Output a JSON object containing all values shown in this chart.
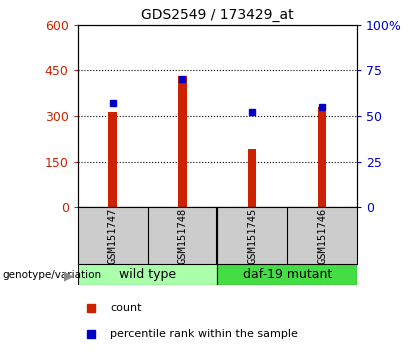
{
  "title": "GDS2549 / 173429_at",
  "categories": [
    "GSM151747",
    "GSM151748",
    "GSM151745",
    "GSM151746"
  ],
  "bar_values": [
    312,
    432,
    192,
    330
  ],
  "percentile_values": [
    57,
    70,
    52,
    55
  ],
  "bar_color": "#cc2200",
  "marker_color": "#0000cc",
  "left_ylim": [
    0,
    600
  ],
  "right_ylim": [
    0,
    100
  ],
  "left_yticks": [
    0,
    150,
    300,
    450,
    600
  ],
  "right_yticks": [
    0,
    25,
    50,
    75,
    100
  ],
  "right_yticklabels": [
    "0",
    "25",
    "50",
    "75",
    "100%"
  ],
  "legend_count_label": "count",
  "legend_pct_label": "percentile rank within the sample",
  "bg_color": "#ffffff",
  "tick_label_color_left": "#cc2200",
  "tick_label_color_right": "#0000cc",
  "bar_width": 0.12,
  "sample_box_color": "#cccccc",
  "group_color_1": "#aaffaa",
  "group_color_2": "#44dd44",
  "group_label_1": "wild type",
  "group_label_2": "daf-19 mutant"
}
